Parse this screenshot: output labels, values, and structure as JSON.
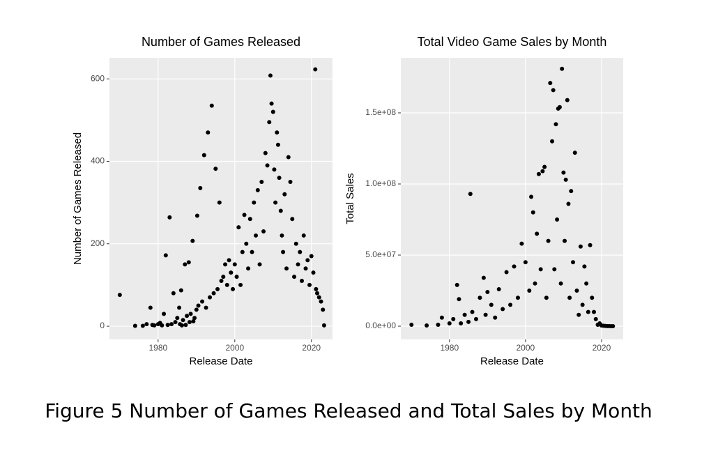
{
  "chart_data": [
    {
      "type": "scatter",
      "title": "Number of Games Released",
      "x_label": "Release Date",
      "y_label": "Number of Games Released",
      "color": "#000000",
      "grid": true,
      "xlim": [
        1967.3,
        2025.5
      ],
      "ylim": [
        -32,
        651
      ],
      "xticks": [
        1980,
        2000,
        2020
      ],
      "yticks": [
        0,
        200,
        400,
        600
      ],
      "x": [
        1970,
        1974,
        1976,
        1977,
        1978,
        1978.5,
        1979,
        1980,
        1980.5,
        1981,
        1981.5,
        1982,
        1982.5,
        1983,
        1983.5,
        1984,
        1984.5,
        1985,
        1985.5,
        1986,
        1986.5,
        1987,
        1987.5,
        1988,
        1988.5,
        1989,
        1989.5,
        1990,
        1990.2,
        1990.5,
        1991,
        1991.5,
        1992,
        1992.5,
        1993,
        1993.5,
        1994,
        1994.5,
        1995,
        1995.5,
        1996,
        1996.5,
        1997,
        1997.5,
        1998,
        1998.5,
        1999,
        1999.5,
        2000,
        2000.5,
        2001,
        2001.5,
        2002,
        2002.5,
        2003,
        2003.5,
        2004,
        2004.5,
        2005,
        2005.5,
        2006,
        2006.5,
        2007,
        2007.5,
        2008,
        2008.5,
        2009,
        2009.3,
        2009.6,
        2010,
        2010.3,
        2010.6,
        2011,
        2011.3,
        2011.6,
        2012,
        2012.3,
        2012.6,
        2013,
        2013.5,
        2014,
        2014.5,
        2015,
        2015.5,
        2016,
        2016.5,
        2017,
        2017.5,
        2018,
        2018.5,
        2019,
        2019.5,
        2020,
        2020.5,
        2021,
        2021.2,
        2021.5,
        2022,
        2022.5,
        2023,
        2023.3,
        1985.7,
        1986.2,
        1987.2,
        1988.2,
        1989.2
      ],
      "values": [
        76,
        1,
        1,
        5,
        45,
        3,
        2,
        5,
        8,
        2,
        30,
        172,
        3,
        264,
        5,
        80,
        10,
        20,
        45,
        87,
        15,
        150,
        25,
        155,
        30,
        207,
        20,
        40,
        268,
        50,
        335,
        60,
        415,
        45,
        470,
        70,
        535,
        80,
        382,
        90,
        300,
        110,
        120,
        150,
        100,
        160,
        130,
        90,
        150,
        120,
        240,
        100,
        180,
        270,
        200,
        140,
        260,
        180,
        300,
        220,
        330,
        150,
        350,
        230,
        420,
        390,
        495,
        608,
        540,
        520,
        380,
        300,
        470,
        440,
        360,
        280,
        220,
        180,
        320,
        140,
        410,
        350,
        260,
        120,
        200,
        150,
        180,
        110,
        220,
        140,
        160,
        100,
        170,
        130,
        623,
        90,
        80,
        70,
        60,
        40,
        2,
        5,
        2,
        3,
        10,
        12
      ]
    },
    {
      "type": "scatter",
      "title": "Total Video Game Sales by Month",
      "x_label": "Release Date",
      "y_label": "Total Sales",
      "color": "#000000",
      "grid": true,
      "xlim": [
        1967.2,
        2025.7
      ],
      "ylim": [
        -9300000,
        188700000
      ],
      "xticks": [
        1980,
        2000,
        2020
      ],
      "yticks": [
        {
          "value": 0,
          "label": "0.0e+00"
        },
        {
          "value": 50000000,
          "label": "5.0e+07"
        },
        {
          "value": 100000000,
          "label": "1.0e+08"
        },
        {
          "value": 150000000,
          "label": "1.5e+08"
        }
      ],
      "x": [
        1970,
        1974,
        1977,
        1978,
        1980,
        1981,
        1982,
        1982.5,
        1983,
        1984,
        1985,
        1985.5,
        1986,
        1987,
        1988,
        1989,
        1989.5,
        1990,
        1991,
        1992,
        1993,
        1994,
        1995,
        1996,
        1997,
        1998,
        1999,
        2000,
        2001,
        2001.5,
        2002,
        2002.5,
        2003,
        2003.5,
        2004,
        2004.5,
        2005,
        2005.5,
        2006,
        2006.5,
        2007,
        2007.3,
        2007.6,
        2008,
        2008.3,
        2008.6,
        2009,
        2009.3,
        2009.6,
        2010,
        2010.3,
        2010.6,
        2011,
        2011.3,
        2011.6,
        2012,
        2012.5,
        2013,
        2013.5,
        2014,
        2014.5,
        2015,
        2015.5,
        2016,
        2016.5,
        2017,
        2017.5,
        2018,
        2018.5,
        2019,
        2019.5,
        2020,
        2020.5,
        2021,
        2021.5,
        2022,
        2022.5,
        2023
      ],
      "values": [
        1000000,
        500000,
        1000000,
        6000000,
        2000000,
        5000000,
        29000000,
        19000000,
        2000000,
        8000000,
        3000000,
        93000000,
        10000000,
        5000000,
        20000000,
        34000000,
        8000000,
        24000000,
        15000000,
        6000000,
        26000000,
        12000000,
        38000000,
        15000000,
        42000000,
        20000000,
        58000000,
        45000000,
        25000000,
        91000000,
        80000000,
        30000000,
        65000000,
        107000000,
        40000000,
        109000000,
        112000000,
        20000000,
        60000000,
        171000000,
        130000000,
        166000000,
        40000000,
        142000000,
        75000000,
        153000000,
        154000000,
        30000000,
        181000000,
        108000000,
        60000000,
        103000000,
        159000000,
        86000000,
        20000000,
        95000000,
        45000000,
        122000000,
        25000000,
        8000000,
        56000000,
        15000000,
        42000000,
        30000000,
        10000000,
        57000000,
        20000000,
        10000000,
        5000000,
        1000000,
        2000000,
        500000,
        300000,
        200000,
        100000,
        100000,
        0,
        0
      ]
    }
  ],
  "caption": "Figure 5 Number of Games Released and Total Sales by Month"
}
